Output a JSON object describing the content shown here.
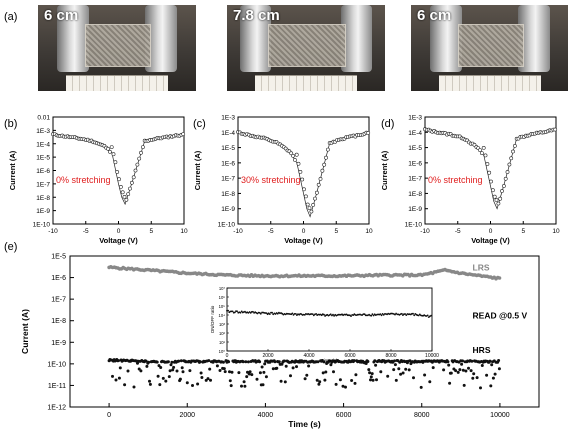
{
  "panel_labels": [
    "(a)",
    "(b)",
    "(c)",
    "(d)",
    "(e)"
  ],
  "photos": [
    {
      "label": "6 cm"
    },
    {
      "label": "7.8 cm"
    },
    {
      "label": "6 cm"
    }
  ],
  "colors": {
    "stretch_label": "#e02020",
    "lrs": "#888888",
    "hrs": "#111111",
    "inset": "#111111"
  },
  "chart_data": [
    {
      "type": "line",
      "panel": "(b)",
      "xlabel": "Voltage (V)",
      "ylabel": "Current (A)",
      "xlim": [
        -10,
        10
      ],
      "ylim_exp": [
        -10,
        -2
      ],
      "y_log": true,
      "x_ticks": [
        "-10",
        "-5",
        "0",
        "5",
        "10"
      ],
      "y_ticks": [
        "1E-10",
        "1E-9",
        "1E-8",
        "1E-7",
        "1E-6",
        "1E-5",
        "1E-4",
        "1E-3",
        "0.01"
      ],
      "annotation": "0% stretching",
      "series": [
        {
          "x": [
            -10,
            -8,
            -6,
            -4,
            -2,
            -1,
            0,
            0.5,
            1,
            2,
            4,
            6,
            8,
            10
          ],
          "y": [
            0.0005,
            0.00035,
            0.00025,
            0.00016,
            6e-05,
            2e-05,
            1e-07,
            1e-08,
            3e-09,
            1e-07,
            0.00016,
            0.00025,
            0.00035,
            0.0005
          ]
        }
      ]
    },
    {
      "type": "line",
      "panel": "(c)",
      "xlabel": "Voltage (V)",
      "ylabel": "Current (A)",
      "xlim": [
        -10,
        10
      ],
      "ylim_exp": [
        -10,
        -3
      ],
      "y_log": true,
      "x_ticks": [
        "-10",
        "-5",
        "0",
        "5",
        "10"
      ],
      "y_ticks": [
        "1E-10",
        "1E-9",
        "1E-8",
        "1E-7",
        "1E-6",
        "1E-5",
        "1E-4",
        "1E-3"
      ],
      "annotation": "30% stretching",
      "series": [
        {
          "x": [
            -10,
            -8,
            -6,
            -4,
            -2,
            -1,
            0,
            0.5,
            1,
            2,
            4,
            6,
            8,
            10
          ],
          "y": [
            0.0001,
            6e-05,
            4e-05,
            2e-05,
            5e-06,
            1e-06,
            1e-08,
            1e-09,
            3e-10,
            1e-08,
            2e-05,
            4e-05,
            6e-05,
            0.0001
          ]
        }
      ]
    },
    {
      "type": "line",
      "panel": "(d)",
      "xlabel": "Voltage (V)",
      "ylabel": "Current (A)",
      "xlim": [
        -10,
        10
      ],
      "ylim_exp": [
        -10,
        -3
      ],
      "y_log": true,
      "x_ticks": [
        "-10",
        "-5",
        "0",
        "5",
        "10"
      ],
      "y_ticks": [
        "1E-10",
        "1E-9",
        "1E-8",
        "1E-7",
        "1E-6",
        "1E-5",
        "1E-4",
        "1E-3"
      ],
      "annotation": "0% stretching",
      "series": [
        {
          "x": [
            -10,
            -8,
            -6,
            -4,
            -2,
            -1,
            0,
            0.5,
            1,
            2,
            4,
            6,
            8,
            10
          ],
          "y": [
            0.00015,
            0.0001,
            7e-05,
            4e-05,
            1e-05,
            3e-06,
            3e-08,
            3e-09,
            1e-09,
            3e-08,
            4e-05,
            7e-05,
            0.0001,
            0.00015
          ]
        }
      ]
    },
    {
      "type": "scatter",
      "panel": "(e)",
      "xlabel": "Time (s)",
      "ylabel": "Current (A)",
      "xlim": [
        -1000,
        11000
      ],
      "ylim_exp": [
        -12,
        -5
      ],
      "y_log": true,
      "x_ticks": [
        "0",
        "2000",
        "4000",
        "6000",
        "8000",
        "10000"
      ],
      "y_ticks": [
        "1E-12",
        "1E-11",
        "1E-10",
        "1E-9",
        "1E-8",
        "1E-7",
        "1E-6",
        "1E-5"
      ],
      "annotations": [
        "READ @0.5 V"
      ],
      "series": [
        {
          "name": "LRS",
          "x": [
            0,
            1000,
            2000,
            3000,
            4000,
            5000,
            6000,
            7000,
            8000,
            8600,
            9000,
            10000
          ],
          "y": [
            3e-06,
            2.2e-06,
            1.6e-06,
            1.3e-06,
            1.2e-06,
            1.2e-06,
            1.2e-06,
            1.3e-06,
            1.3e-06,
            2.2e-06,
            1.6e-06,
            9e-07
          ]
        },
        {
          "name": "HRS",
          "x": [
            0,
            1000,
            2000,
            3000,
            4000,
            5000,
            6000,
            7000,
            8000,
            9000,
            10000
          ],
          "y": [
            1.5e-10,
            1.3e-10,
            1.3e-10,
            1.3e-10,
            1.3e-10,
            1.3e-10,
            1.3e-10,
            1.3e-10,
            1.3e-10,
            1.3e-10,
            1.3e-10
          ]
        }
      ],
      "inset": {
        "xlabel": "Time (s)",
        "ylabel": "ON/OFF ratio",
        "xlim": [
          0,
          10000
        ],
        "ylim_exp": [
          0,
          7
        ],
        "x_ticks": [
          "0",
          "2000",
          "4000",
          "6000",
          "8000",
          "10000"
        ],
        "y_ticks": [
          "10⁰",
          "10¹",
          "10²",
          "10³",
          "10⁴",
          "10⁵",
          "10⁶",
          "10⁷"
        ],
        "x": [
          0,
          1000,
          2000,
          3000,
          4000,
          5000,
          6000,
          7000,
          8000,
          9000,
          10000
        ],
        "y": [
          25000.0,
          20000.0,
          16000.0,
          13000.0,
          11000.0,
          10000.0,
          10000.0,
          11000.0,
          12000.0,
          12000.0,
          7000.0
        ]
      }
    }
  ]
}
